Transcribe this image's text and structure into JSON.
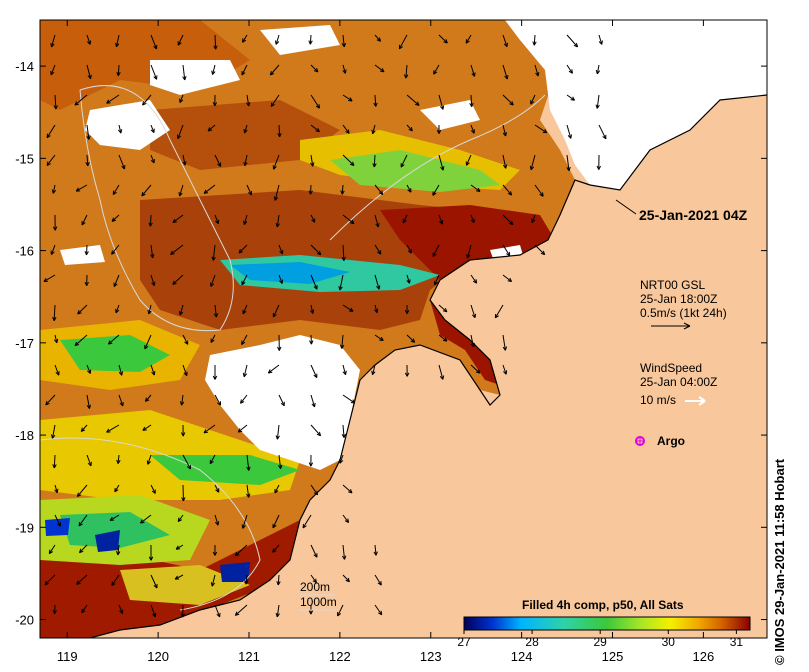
{
  "map": {
    "lon_ticks": [
      "119",
      "120",
      "121",
      "122",
      "123",
      "124",
      "125",
      "126"
    ],
    "lat_ticks": [
      "-14",
      "-15",
      "-16",
      "-17",
      "-18",
      "-19",
      "-20"
    ],
    "lon_range": [
      118.7,
      126.7
    ],
    "lat_range": [
      -13.5,
      -20.2
    ],
    "land_color": "#f8c89c",
    "cloud_color": "#ffffff"
  },
  "annotations": {
    "date_title": "25-Jan-2021 04Z",
    "current": {
      "line1": "NRT00 GSL",
      "line2": "25-Jan 18:00Z",
      "line3": "0.5m/s (1kt 24h)"
    },
    "wind": {
      "line1": "WindSpeed",
      "line2": "25-Jan 04:00Z",
      "line3": "10 m/s"
    },
    "argo": "Argo",
    "bathymetry": [
      "200m",
      "1000m"
    ],
    "credit": "© IMOS 29-Jan-2021 11:58 Hobart"
  },
  "colorbar": {
    "title": "Filled 4h comp, p50, All Sats",
    "labels": [
      "27",
      "28",
      "29",
      "30",
      "31"
    ],
    "range": [
      27,
      31.2
    ]
  }
}
